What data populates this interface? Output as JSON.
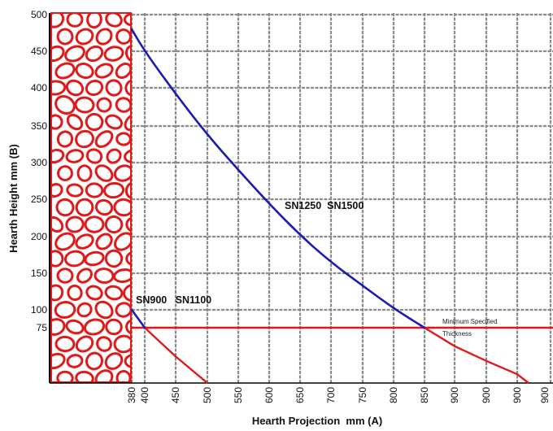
{
  "chart_data": {
    "type": "line",
    "xlabel": "Hearth Projection  mm (A)",
    "ylabel": "Hearth Height mm (B)",
    "x_ticks": [
      "380",
      "400",
      "450",
      "500",
      "550",
      "600",
      "650",
      "700",
      "750",
      "800",
      "850",
      "900",
      "900",
      "900",
      "900"
    ],
    "y_ticks": [
      "500",
      "450",
      "400",
      "350",
      "300",
      "250",
      "200",
      "150",
      "100",
      "75"
    ],
    "ylim": [
      0,
      500
    ],
    "grid": true,
    "series": [
      {
        "name": "SN1250  SN1500",
        "color": "#1a1ab4",
        "x": [
          380,
          400,
          450,
          500,
          550,
          600,
          650,
          700,
          750,
          800,
          850
        ],
        "y": [
          480,
          450,
          392,
          338,
          290,
          244,
          202,
          165,
          133,
          102,
          75
        ]
      },
      {
        "name": "SN900   SN1100",
        "color": "#1a1ab4",
        "x": [
          380,
          400
        ],
        "y": [
          100,
          75
        ]
      }
    ],
    "reference_lines": [
      {
        "y": 75,
        "color": "#e01a1a",
        "label_line1": "Minimum Specified",
        "label_line2": "Thickness"
      }
    ],
    "red_extensions": [
      {
        "x": [
          400,
          450,
          500
        ],
        "y": [
          75,
          36,
          0
        ]
      },
      {
        "x": [
          850,
          900,
          900,
          900,
          900
        ],
        "y": [
          75,
          50,
          30,
          12,
          0
        ]
      }
    ],
    "wall_color": "#e01a1a"
  }
}
